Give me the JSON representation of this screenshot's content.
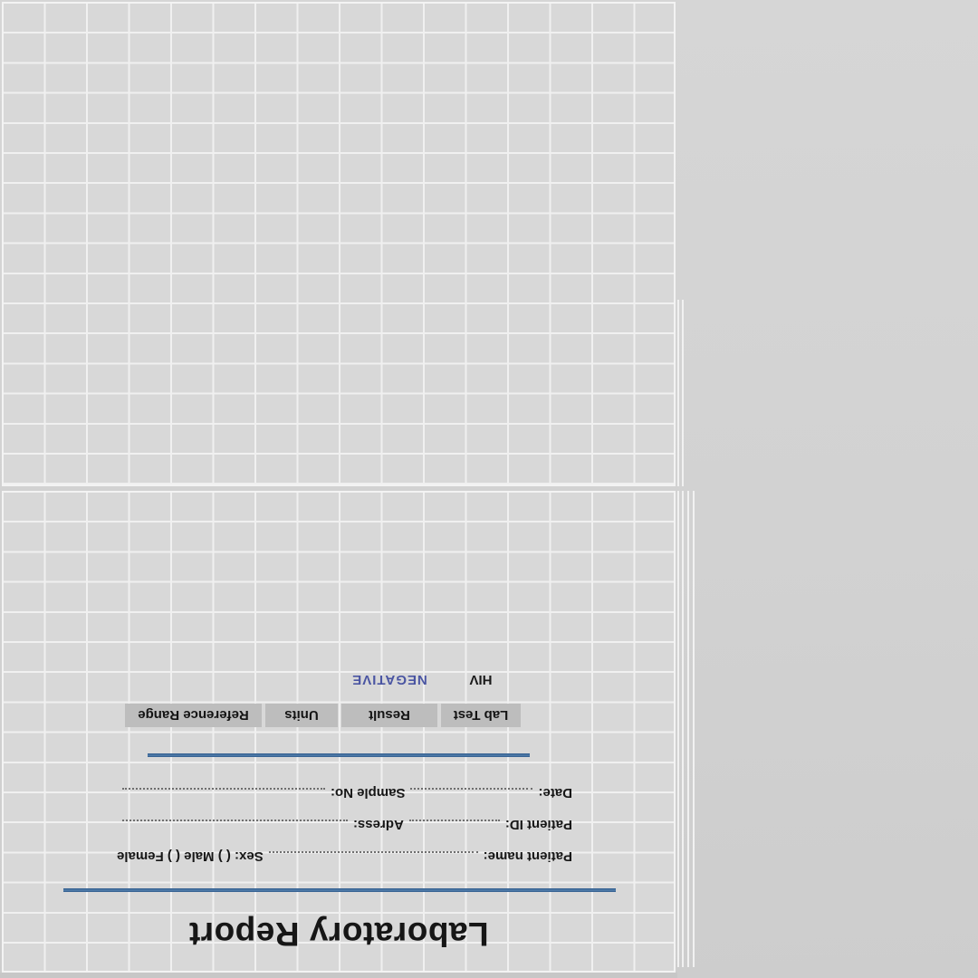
{
  "document": {
    "title": "Laboratory Report",
    "form": {
      "rows": [
        {
          "left_label": "Patient name:",
          "right_label": "Sex: ( ) Male ( ) Female"
        },
        {
          "left_label": "Patient ID:",
          "right_label": "Adress:"
        },
        {
          "left_label": "Date:",
          "right_label": "Sample No:"
        }
      ]
    },
    "table": {
      "headers": [
        "Lab Test",
        "Result",
        "Units",
        "Reference Range"
      ],
      "rows": [
        {
          "lab_test": "HIV",
          "result": "NEGATIVE",
          "units": "",
          "reference_range": ""
        }
      ]
    }
  },
  "colors": {
    "accent_line_blue": "#44709F",
    "negative_result_blue": "#4A55A2",
    "table_header_bg": "#BDBDBD",
    "paper_grid_fill": "#D8D8D8",
    "grid_line": "#F0F0F0",
    "background_gray": "#D2D2D2"
  }
}
